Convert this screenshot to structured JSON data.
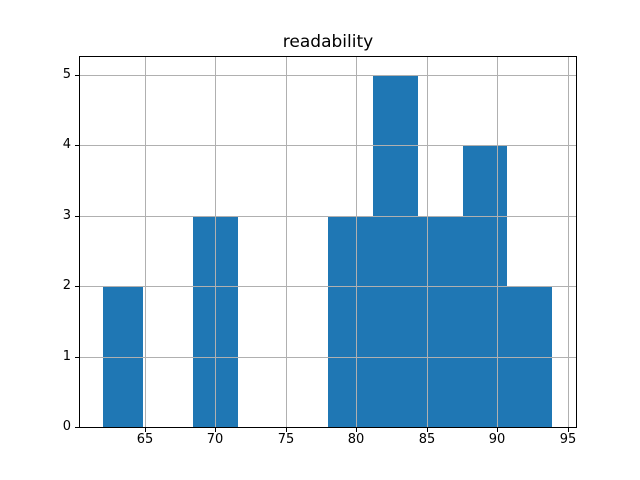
{
  "figure": {
    "background": "#ffffff"
  },
  "chart_data": {
    "type": "histogram",
    "title": "readability",
    "xlabel": "",
    "ylabel": "",
    "xlim": [
      60.4,
      95.6
    ],
    "ylim": [
      0,
      5.25
    ],
    "xticks": [
      65,
      70,
      75,
      80,
      85,
      90,
      95
    ],
    "yticks": [
      0,
      1,
      2,
      3,
      4,
      5
    ],
    "grid": true,
    "grid_position": "above-bars",
    "legend": false,
    "bar_color": "#1f77b4",
    "grid_color": "#b0b0b0",
    "spine_color": "#000000",
    "text_color": "#000000",
    "bars": [
      {
        "x_start": 62.0,
        "x_end": 64.9,
        "count": 2
      },
      {
        "x_start": 68.4,
        "x_end": 71.6,
        "count": 3
      },
      {
        "x_start": 78.0,
        "x_end": 81.2,
        "count": 3
      },
      {
        "x_start": 81.2,
        "x_end": 84.4,
        "count": 5
      },
      {
        "x_start": 84.4,
        "x_end": 87.6,
        "count": 3
      },
      {
        "x_start": 87.6,
        "x_end": 90.7,
        "count": 4
      },
      {
        "x_start": 90.7,
        "x_end": 93.9,
        "count": 2
      }
    ],
    "total_count": 22
  }
}
